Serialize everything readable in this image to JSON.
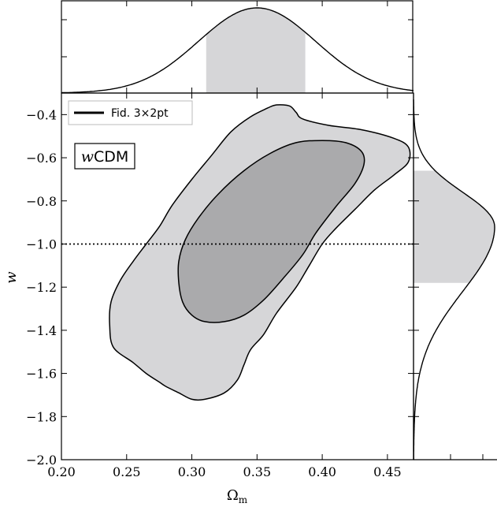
{
  "chart_data": {
    "type": "corner",
    "x_param": {
      "label": "Ω",
      "label_sub": "m",
      "range": [
        0.2,
        0.47
      ],
      "ticks": [
        0.2,
        0.25,
        0.3,
        0.35,
        0.4,
        0.45
      ],
      "tick_labels": [
        "0.20",
        "0.25",
        "0.30",
        "0.35",
        "0.40",
        "0.45"
      ],
      "marginal": {
        "mean": 0.35,
        "sigma": 0.045,
        "shaded_interval": [
          0.311,
          0.387
        ]
      }
    },
    "y_param": {
      "label": "w",
      "range": [
        -2.0,
        -0.3
      ],
      "ticks": [
        -2.0,
        -1.8,
        -1.6,
        -1.4,
        -1.2,
        -1.0,
        -0.8,
        -0.6,
        -0.4
      ],
      "tick_labels": [
        "−2.0",
        "−1.8",
        "−1.6",
        "−1.4",
        "−1.2",
        "−1.0",
        "−0.8",
        "−0.6",
        "−0.4"
      ],
      "fiducial": -1.0,
      "marginal": {
        "mode": -0.92,
        "sigma_upper": 0.16,
        "sigma_lower": 0.3,
        "shaded_interval": [
          -1.18,
          -0.66
        ]
      }
    },
    "contours": [
      {
        "name": "outer",
        "fill": "#d6d6d8",
        "points": [
          [
            0.365,
            -0.355
          ],
          [
            0.375,
            -0.36
          ],
          [
            0.38,
            -0.39
          ],
          [
            0.385,
            -0.42
          ],
          [
            0.405,
            -0.45
          ],
          [
            0.43,
            -0.47
          ],
          [
            0.455,
            -0.51
          ],
          [
            0.466,
            -0.55
          ],
          [
            0.466,
            -0.62
          ],
          [
            0.455,
            -0.68
          ],
          [
            0.44,
            -0.75
          ],
          [
            0.425,
            -0.84
          ],
          [
            0.41,
            -0.93
          ],
          [
            0.4,
            -1.0
          ],
          [
            0.39,
            -1.1
          ],
          [
            0.38,
            -1.2
          ],
          [
            0.365,
            -1.32
          ],
          [
            0.355,
            -1.42
          ],
          [
            0.345,
            -1.49
          ],
          [
            0.34,
            -1.56
          ],
          [
            0.335,
            -1.63
          ],
          [
            0.325,
            -1.69
          ],
          [
            0.31,
            -1.72
          ],
          [
            0.3,
            -1.72
          ],
          [
            0.29,
            -1.69
          ],
          [
            0.28,
            -1.66
          ],
          [
            0.275,
            -1.64
          ],
          [
            0.265,
            -1.6
          ],
          [
            0.255,
            -1.55
          ],
          [
            0.24,
            -1.48
          ],
          [
            0.237,
            -1.38
          ],
          [
            0.238,
            -1.27
          ],
          [
            0.245,
            -1.17
          ],
          [
            0.255,
            -1.08
          ],
          [
            0.265,
            -1.0
          ],
          [
            0.275,
            -0.92
          ],
          [
            0.285,
            -0.82
          ],
          [
            0.3,
            -0.7
          ],
          [
            0.315,
            -0.59
          ],
          [
            0.33,
            -0.48
          ],
          [
            0.345,
            -0.41
          ],
          [
            0.358,
            -0.37
          ]
        ]
      },
      {
        "name": "inner",
        "fill": "#aaaaac",
        "points": [
          [
            0.4,
            -0.52
          ],
          [
            0.418,
            -0.53
          ],
          [
            0.43,
            -0.57
          ],
          [
            0.432,
            -0.63
          ],
          [
            0.425,
            -0.72
          ],
          [
            0.41,
            -0.83
          ],
          [
            0.395,
            -0.95
          ],
          [
            0.385,
            -1.05
          ],
          [
            0.37,
            -1.16
          ],
          [
            0.355,
            -1.26
          ],
          [
            0.34,
            -1.33
          ],
          [
            0.325,
            -1.36
          ],
          [
            0.31,
            -1.36
          ],
          [
            0.3,
            -1.33
          ],
          [
            0.293,
            -1.27
          ],
          [
            0.29,
            -1.18
          ],
          [
            0.29,
            -1.08
          ],
          [
            0.295,
            -0.98
          ],
          [
            0.305,
            -0.88
          ],
          [
            0.32,
            -0.77
          ],
          [
            0.34,
            -0.66
          ],
          [
            0.36,
            -0.58
          ],
          [
            0.38,
            -0.53
          ]
        ]
      }
    ],
    "legend": {
      "entries": [
        "Fid. 3×2pt"
      ],
      "location": "upper-left"
    },
    "annotation": {
      "italic": "w",
      "text": "CDM"
    },
    "colors": {
      "shade_light": "#d6d6d8",
      "shade_dark": "#aaaaac",
      "line": "#000000"
    }
  }
}
